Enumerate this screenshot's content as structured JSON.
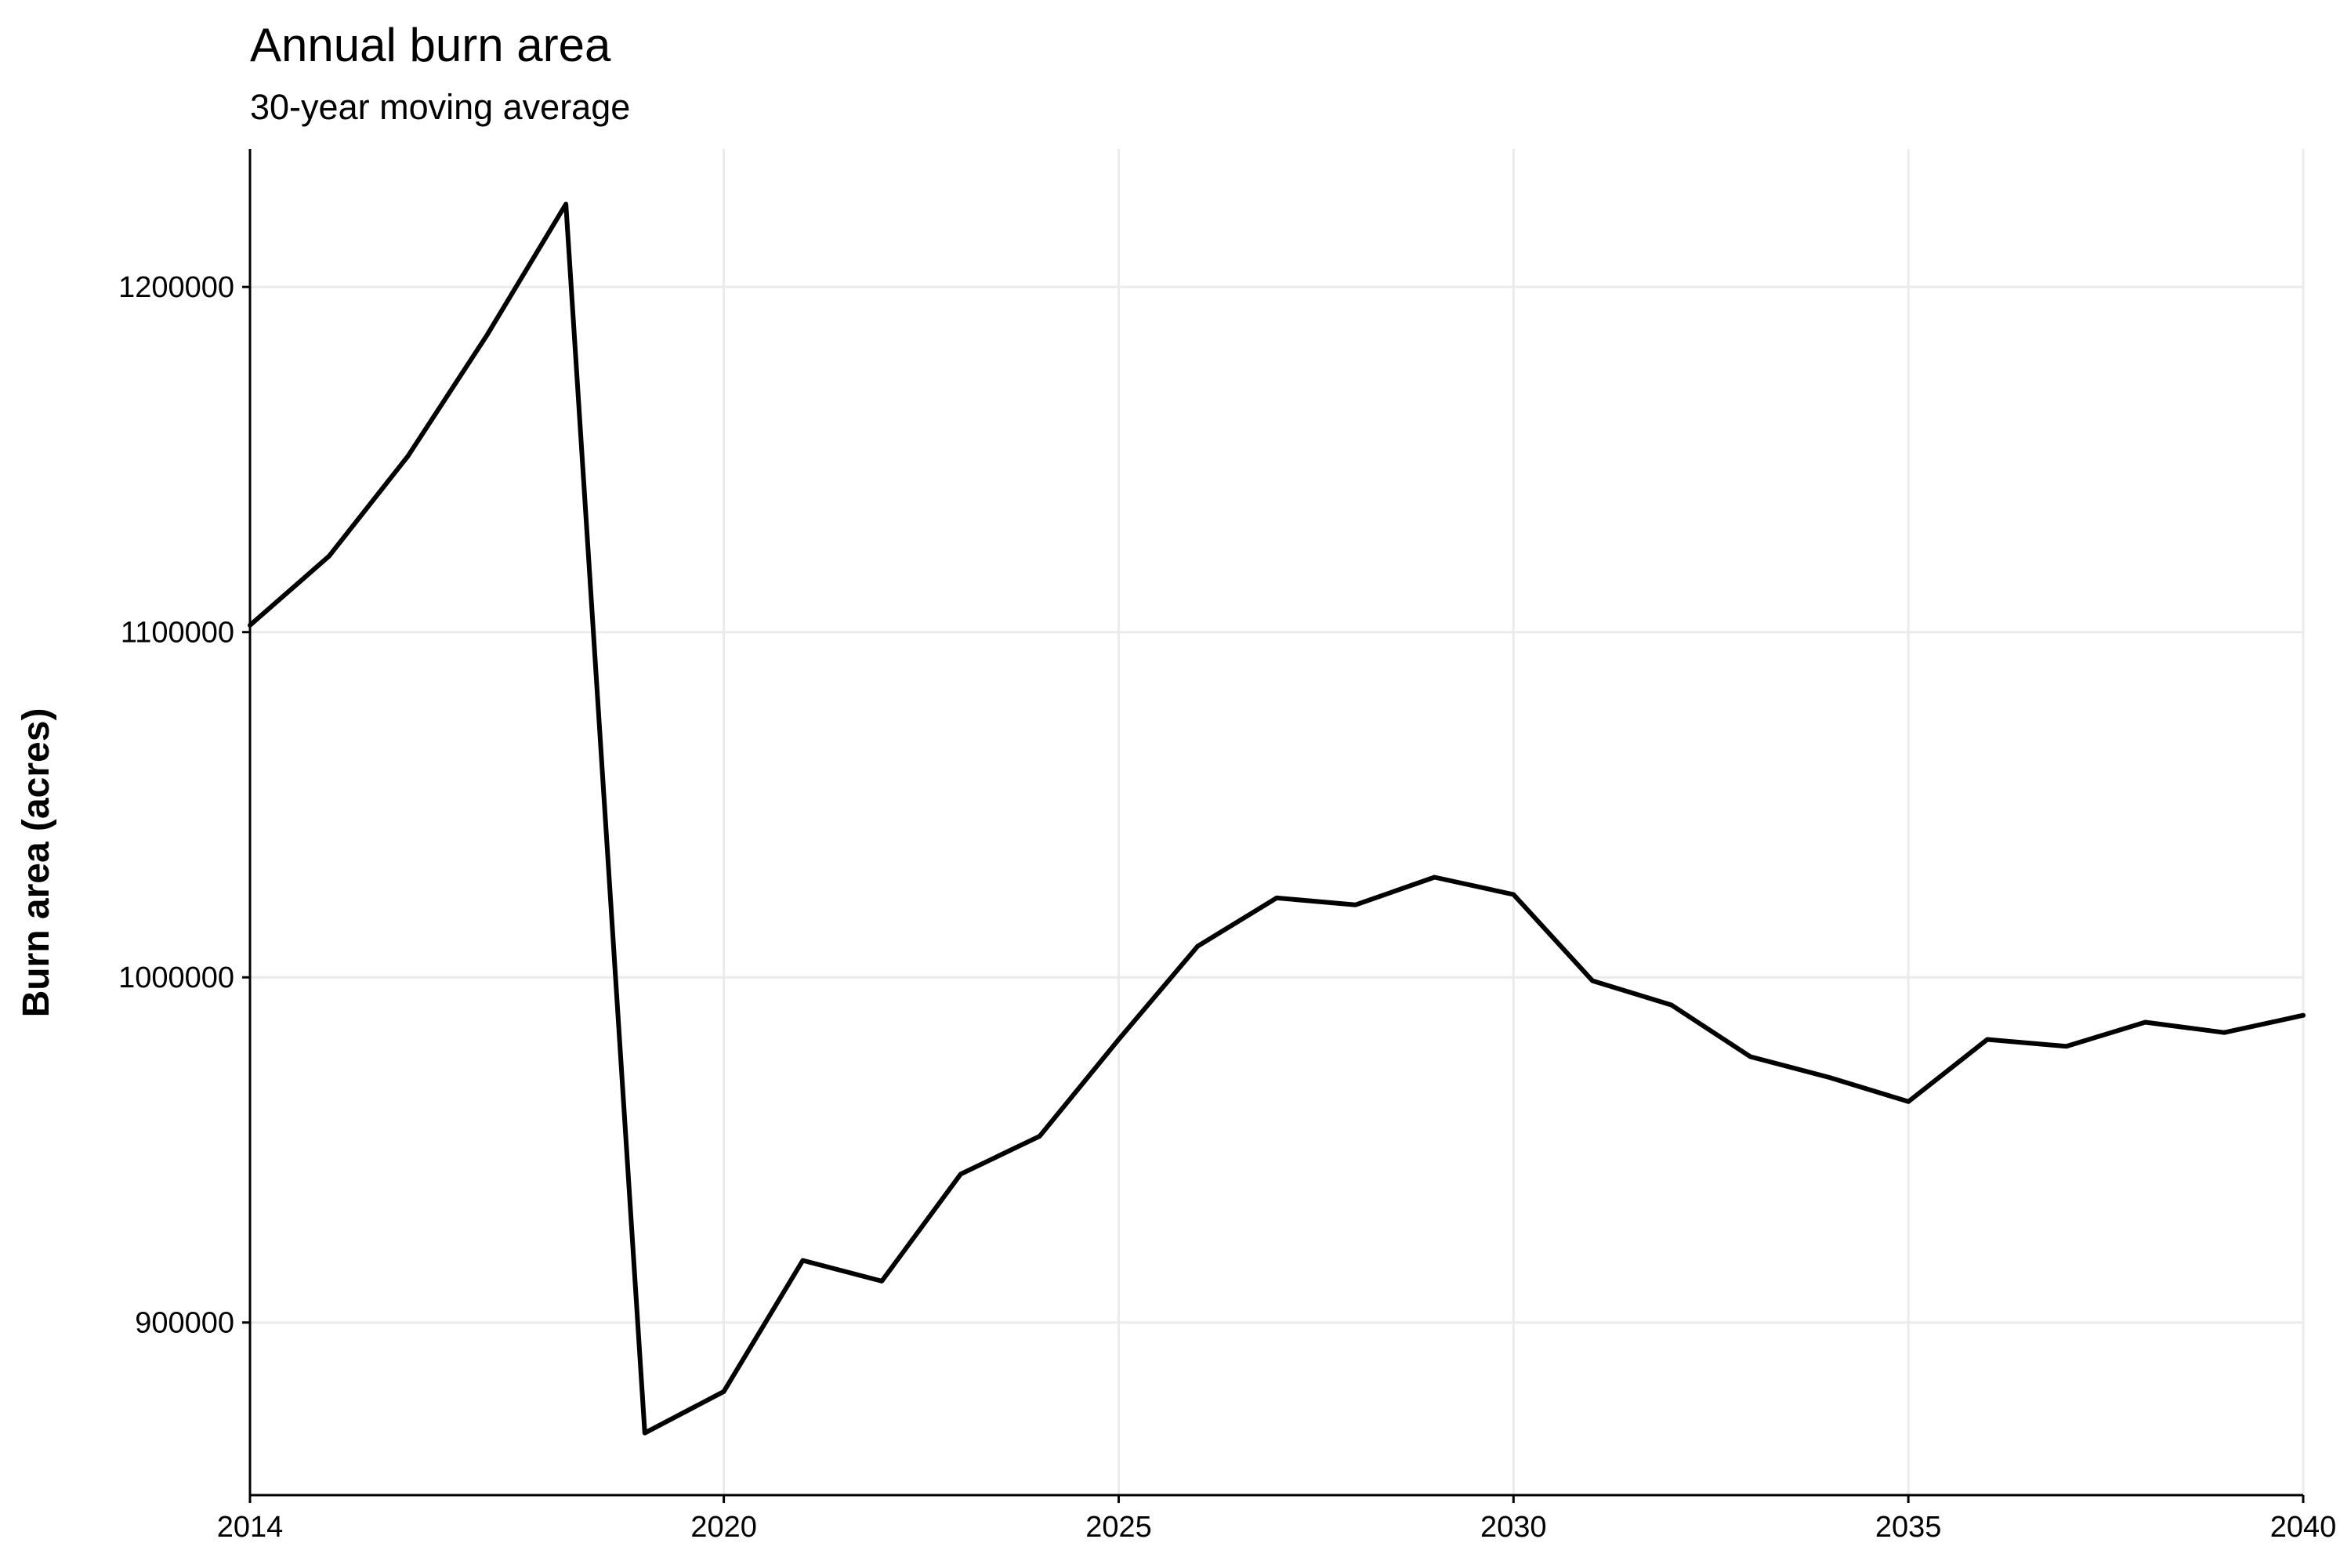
{
  "chart_data": {
    "type": "line",
    "title": "Annual burn area",
    "subtitle": "30-year moving average",
    "xlabel": "",
    "ylabel": "Burn area (acres)",
    "xlim": [
      2014,
      2040
    ],
    "ylim": [
      850000,
      1240000
    ],
    "x_ticks": [
      2014,
      2020,
      2025,
      2030,
      2035,
      2040
    ],
    "y_ticks": [
      900000,
      1000000,
      1100000,
      1200000
    ],
    "x_tick_labels": [
      "2014",
      "2020",
      "2025",
      "2030",
      "2035",
      "2040"
    ],
    "y_tick_labels": [
      "900000",
      "1000000",
      "1100000",
      "1200000"
    ],
    "grid": true,
    "legend": "none",
    "series": [
      {
        "x": [
          2014,
          2015,
          2016,
          2017,
          2018,
          2019,
          2020,
          2021,
          2022,
          2023,
          2024,
          2025,
          2026,
          2027,
          2028,
          2029,
          2030,
          2031,
          2032,
          2033,
          2034,
          2035,
          2036,
          2037,
          2038,
          2039,
          2040
        ],
        "values": [
          1102000,
          1122000,
          1151000,
          1186000,
          1224000,
          868000,
          880000,
          918000,
          912000,
          943000,
          954000,
          982000,
          1009000,
          1023000,
          1021000,
          1029000,
          1024000,
          999000,
          992000,
          977000,
          971000,
          964000,
          982000,
          980000,
          987000,
          984000,
          989000
        ],
        "color": "#000000"
      }
    ]
  }
}
